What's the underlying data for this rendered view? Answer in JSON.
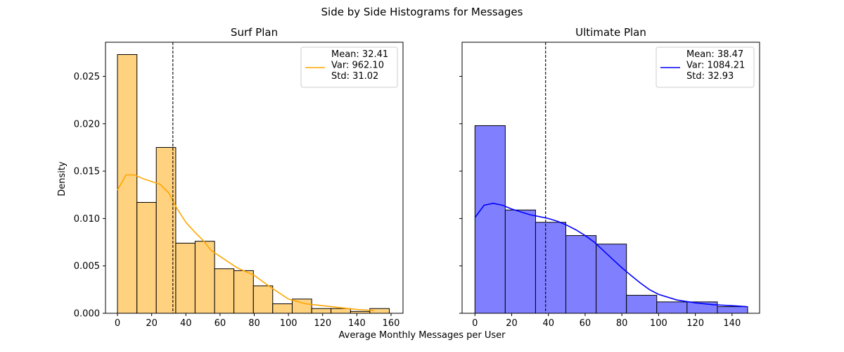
{
  "figure": {
    "suptitle": "Side by Side Histograms for Messages",
    "xlabel": "Average Monthly Messages per User",
    "ylabel": "Density"
  },
  "chart_data": [
    {
      "type": "bar",
      "subtype": "histogram-with-kde",
      "title": "Surf Plan",
      "xlabel": "",
      "ylabel": "Density",
      "xlim": [
        -7,
        167
      ],
      "ylim": [
        0,
        0.0286
      ],
      "xticks": [
        0,
        20,
        40,
        60,
        80,
        100,
        120,
        140,
        160
      ],
      "yticks": [
        0.0,
        0.005,
        0.01,
        0.015,
        0.02,
        0.025
      ],
      "ytick_labels": [
        "0.000",
        "0.005",
        "0.010",
        "0.015",
        "0.020",
        "0.025"
      ],
      "show_ytick_labels": true,
      "bin_edges": [
        0,
        11.4,
        22.7,
        34.1,
        45.4,
        56.8,
        68.1,
        79.5,
        90.8,
        102.2,
        113.6,
        124.9,
        136.3,
        147.6,
        159
      ],
      "values": [
        0.0273,
        0.0117,
        0.0175,
        0.0074,
        0.0076,
        0.0047,
        0.0045,
        0.0029,
        0.001,
        0.0015,
        0.0005,
        0.0005,
        0.0002,
        0.0005
      ],
      "bar_color": "#ffd280",
      "edge_color": "#000000",
      "kde": {
        "color": "#ffa500",
        "x": [
          0,
          5,
          10,
          15,
          20,
          25,
          30,
          35,
          40,
          45,
          50,
          55,
          60,
          70,
          80,
          90,
          100,
          110,
          120,
          130,
          140,
          150
        ],
        "y": [
          0.013,
          0.0146,
          0.0146,
          0.0142,
          0.0139,
          0.0136,
          0.0127,
          0.011,
          0.0096,
          0.0086,
          0.0077,
          0.0066,
          0.006,
          0.0048,
          0.004,
          0.0027,
          0.0015,
          0.001,
          0.0008,
          0.0006,
          0.0004,
          0.0003
        ]
      },
      "mean_line": 32.41,
      "legend": {
        "position": "top-right",
        "color": "#ffa500",
        "lines": [
          "Mean: 32.41",
          "Var: 962.10",
          "Std: 31.02"
        ]
      }
    },
    {
      "type": "bar",
      "subtype": "histogram-with-kde",
      "title": "Ultimate Plan",
      "xlabel": "",
      "ylabel": "",
      "xlim": [
        -7,
        155
      ],
      "ylim": [
        0,
        0.0286
      ],
      "xticks": [
        0,
        20,
        40,
        60,
        80,
        100,
        120,
        140
      ],
      "yticks": [
        0.0,
        0.005,
        0.01,
        0.015,
        0.02,
        0.025
      ],
      "ytick_labels": [
        "0.000",
        "0.005",
        "0.010",
        "0.015",
        "0.020",
        "0.025"
      ],
      "show_ytick_labels": false,
      "bin_edges": [
        0,
        16.5,
        33,
        49.5,
        66,
        82.5,
        99,
        115.5,
        132,
        148.5
      ],
      "values": [
        0.0198,
        0.0109,
        0.0096,
        0.0082,
        0.0073,
        0.0019,
        0.0012,
        0.0012,
        0.0007
      ],
      "bar_color": "#8080ff",
      "edge_color": "#000000",
      "kde": {
        "color": "#0000ff",
        "x": [
          0,
          5,
          10,
          15,
          20,
          25,
          30,
          35,
          40,
          45,
          50,
          55,
          60,
          65,
          70,
          75,
          80,
          85,
          90,
          95,
          100,
          110,
          120,
          130,
          140,
          148
        ],
        "y": [
          0.0101,
          0.0114,
          0.0116,
          0.0114,
          0.011,
          0.0107,
          0.0104,
          0.0102,
          0.01,
          0.0097,
          0.0093,
          0.0088,
          0.0082,
          0.0075,
          0.0066,
          0.0057,
          0.0048,
          0.004,
          0.0032,
          0.0025,
          0.002,
          0.0014,
          0.0011,
          0.0009,
          0.0008,
          0.0007
        ]
      },
      "mean_line": 38.47,
      "legend": {
        "position": "top-right",
        "color": "#0000ff",
        "lines": [
          "Mean: 38.47",
          "Var: 1084.21",
          "Std: 32.93"
        ]
      }
    }
  ]
}
